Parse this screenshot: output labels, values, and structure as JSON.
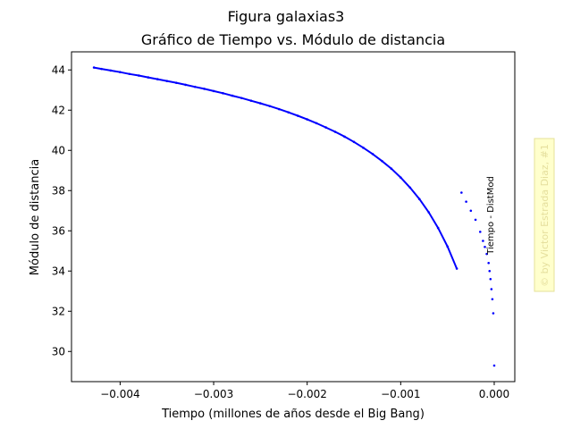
{
  "figure": {
    "suptitle": "Figura galaxias3"
  },
  "chart_data": {
    "type": "scatter",
    "title": "Gráfico de Tiempo vs. Módulo de distancia",
    "xlabel": "Tiempo (millones de años desde el Big Bang)",
    "ylabel": "Módulo de distancia",
    "xlim": [
      -0.00452,
      0.00022
    ],
    "ylim": [
      28.5,
      44.9
    ],
    "x_ticks": [
      -0.004,
      -0.003,
      -0.002,
      -0.001,
      0.0
    ],
    "x_tick_labels": [
      "−0.004",
      "−0.003",
      "−0.002",
      "−0.001",
      "0.000"
    ],
    "y_ticks": [
      30,
      32,
      34,
      36,
      38,
      40,
      42,
      44
    ],
    "y_tick_labels": [
      "30",
      "32",
      "34",
      "36",
      "38",
      "40",
      "42",
      "44"
    ],
    "grid": false,
    "series": [
      {
        "color": "#0000ff",
        "marker": "dot",
        "x": [
          -0.00428,
          -0.0042,
          -0.0041,
          -0.004,
          -0.0039,
          -0.0038,
          -0.0037,
          -0.0036,
          -0.0035,
          -0.0034,
          -0.0033,
          -0.0032,
          -0.0031,
          -0.003,
          -0.0029,
          -0.0028,
          -0.0027,
          -0.0026,
          -0.0025,
          -0.0024,
          -0.0023,
          -0.0022,
          -0.0021,
          -0.002,
          -0.0019,
          -0.0018,
          -0.0017,
          -0.0016,
          -0.0015,
          -0.0014,
          -0.0013,
          -0.0012,
          -0.0011,
          -0.001,
          -0.0009,
          -0.0008,
          -0.0007,
          -0.0006,
          -0.0005,
          -0.0004,
          -0.00035,
          -0.0003,
          -0.00025,
          -0.0002,
          -0.00015,
          -0.00012,
          -0.0001,
          -8e-05,
          -6e-05,
          -5e-05,
          -4e-05,
          -3e-05,
          -2e-05,
          -1e-05,
          0.0
        ],
        "y": [
          44.12,
          44.05,
          43.97,
          43.89,
          43.8,
          43.72,
          43.63,
          43.54,
          43.45,
          43.36,
          43.26,
          43.16,
          43.06,
          42.95,
          42.84,
          42.72,
          42.6,
          42.47,
          42.34,
          42.2,
          42.05,
          41.89,
          41.72,
          41.54,
          41.35,
          41.14,
          40.92,
          40.68,
          40.42,
          40.13,
          39.82,
          39.47,
          39.09,
          38.65,
          38.15,
          37.58,
          36.92,
          36.14,
          35.22,
          34.12,
          37.9,
          37.45,
          37.0,
          36.55,
          35.95,
          35.5,
          35.2,
          34.85,
          34.4,
          34.0,
          33.6,
          33.1,
          32.6,
          31.9,
          29.3
        ]
      }
    ],
    "annotation": "Tiempo - DistMod"
  },
  "watermark": {
    "text": "© by Victor Estrada Diaz, #1"
  }
}
